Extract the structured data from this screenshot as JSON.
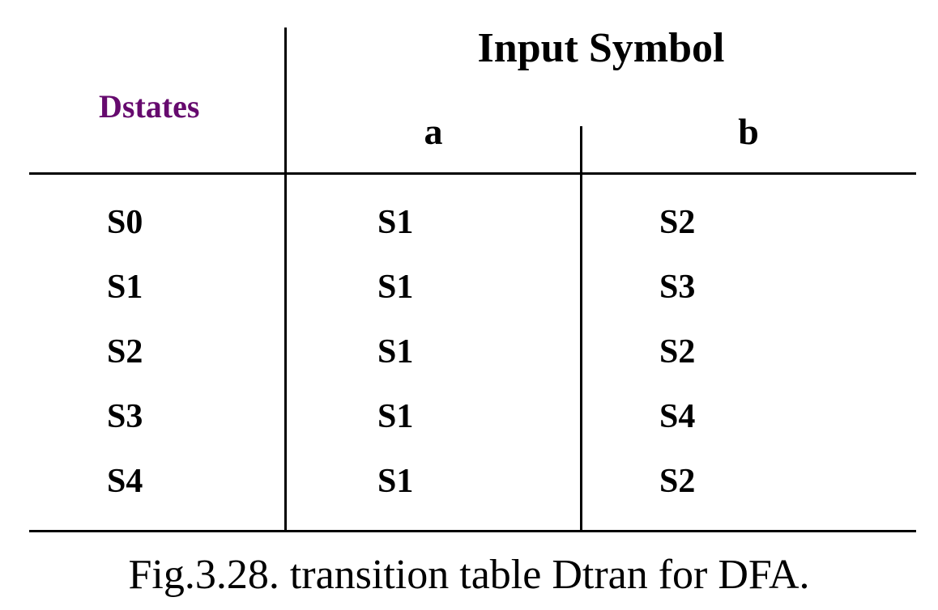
{
  "table": {
    "row_header": "Dstates",
    "group_header": "Input Symbol",
    "columns": [
      "a",
      "b"
    ],
    "rows": [
      {
        "state": "S0",
        "a": "S1",
        "b": "S2"
      },
      {
        "state": "S1",
        "a": "S1",
        "b": "S3"
      },
      {
        "state": "S2",
        "a": "S1",
        "b": "S2"
      },
      {
        "state": "S3",
        "a": "S1",
        "b": "S4"
      },
      {
        "state": "S4",
        "a": "S1",
        "b": "S2"
      }
    ]
  },
  "caption": "Fig.3.28. transition table Dtran for DFA.",
  "colors": {
    "row_header": "#660a6e",
    "text": "#000000",
    "rules": "#000000"
  }
}
